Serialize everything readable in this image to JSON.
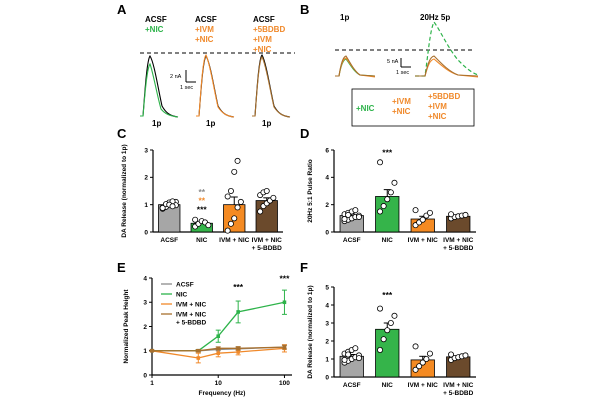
{
  "colors": {
    "acsf": "#000000",
    "nic": "#2db34a",
    "ivm": "#f0892a",
    "bdbd": "#a8702e",
    "acsf_bar": "#a6a6a6",
    "nic_bar": "#35b44a",
    "ivm_bar": "#f48a22",
    "bdbd_bar": "#6b4a2c",
    "gray": "#8c8c8c"
  },
  "panels": {
    "A": "A",
    "B": "B",
    "C": "C",
    "D": "D",
    "E": "E",
    "F": "F"
  },
  "panel_A": {
    "groups": [
      {
        "lines": [
          "ACSF",
          "+NIC"
        ],
        "colors": [
          "acsf",
          "nic"
        ],
        "trace": "nic"
      },
      {
        "lines": [
          "ACSF",
          "+IVM",
          "+NIC"
        ],
        "colors": [
          "acsf",
          "ivm",
          "ivm"
        ],
        "trace": "ivm"
      },
      {
        "lines": [
          "ACSF",
          "+5BDBD",
          "+IVM",
          "+NIC"
        ],
        "colors": [
          "acsf",
          "ivm",
          "ivm",
          "ivm"
        ],
        "trace": "bdbd"
      }
    ],
    "trace_labels": [
      "1p",
      "1p",
      "1p"
    ],
    "scale_y": "2 nA",
    "scale_x": "1 sec"
  },
  "panel_B": {
    "titles": [
      "1p",
      "20Hz 5p"
    ],
    "scale_y": "5 nA",
    "scale_x": "1 sec",
    "legend": [
      {
        "lines": [
          "+NIC"
        ],
        "color": "nic"
      },
      {
        "lines": [
          "+IVM",
          "+NIC"
        ],
        "color": "ivm"
      },
      {
        "lines": [
          "+5BDBD",
          "+IVM",
          "+NIC"
        ],
        "color": "ivm"
      }
    ]
  },
  "chart_data": [
    {
      "panel": "C",
      "type": "bar",
      "ylabel": "DA Release (normalized to 1p)",
      "ylim": [
        0,
        3
      ],
      "yticks": [
        0,
        1,
        2,
        3
      ],
      "categories": [
        "ACSF",
        "NIC",
        "IVM + NIC",
        "IVM + NIC\n+ 5-BDBD"
      ],
      "values": [
        1.0,
        0.32,
        1.0,
        1.15
      ],
      "errors": [
        0.04,
        0.06,
        0.28,
        0.1
      ],
      "points": [
        [
          0.9,
          0.95,
          1.0,
          1.05,
          1.1,
          0.85,
          0.92,
          1.08,
          1.12,
          0.98,
          0.88,
          1.02,
          1.0,
          0.94
        ],
        [
          0.2,
          0.3,
          0.4,
          0.35,
          0.25,
          0.45
        ],
        [
          0.05,
          0.3,
          0.5,
          0.9,
          1.1,
          1.3,
          1.5,
          2.2,
          2.6
        ],
        [
          0.75,
          0.95,
          1.05,
          1.15,
          1.25,
          1.35,
          1.45,
          1.5
        ]
      ],
      "bar_colors": [
        "acsf_bar",
        "nic_bar",
        "ivm_bar",
        "bdbd_bar"
      ],
      "annotations": [
        {
          "text": "**",
          "color": "gray",
          "category": 1,
          "y": 1.35
        },
        {
          "text": "**",
          "color": "ivm",
          "category": 1,
          "y": 1.05
        },
        {
          "text": "***",
          "color": "acsf",
          "category": 1,
          "y": 0.72
        }
      ]
    },
    {
      "panel": "D",
      "type": "bar",
      "ylabel": "20Hz 5:1 Pulse Ratio",
      "ylim": [
        0,
        6
      ],
      "yticks": [
        0,
        2,
        4,
        6
      ],
      "categories": [
        "ACSF",
        "NIC",
        "IVM + NIC",
        "IVM + NIC\n+ 5-BDBD"
      ],
      "values": [
        1.2,
        2.6,
        0.95,
        1.15
      ],
      "errors": [
        0.12,
        0.5,
        0.2,
        0.07
      ],
      "points": [
        [
          0.8,
          0.9,
          1.0,
          1.1,
          1.2,
          1.3,
          1.4,
          1.5,
          1.6,
          1.1,
          0.95,
          1.25
        ],
        [
          1.5,
          1.9,
          2.4,
          2.9,
          3.6,
          5.1
        ],
        [
          0.5,
          0.7,
          0.9,
          1.2,
          1.4,
          1.6
        ],
        [
          1.0,
          1.1,
          1.15,
          1.2,
          1.25,
          1.3
        ]
      ],
      "bar_colors": [
        "acsf_bar",
        "nic_bar",
        "ivm_bar",
        "bdbd_bar"
      ],
      "annotations": [
        {
          "text": "***",
          "color": "acsf",
          "category": 1,
          "y": 5.6
        }
      ]
    },
    {
      "panel": "E",
      "type": "line",
      "xlabel": "Frequency (Hz)",
      "ylabel": "Normalized Peak Height",
      "xscale": "log",
      "xlim": [
        1,
        130
      ],
      "xticks": [
        1,
        10,
        100
      ],
      "ylim": [
        0,
        4
      ],
      "yticks": [
        0,
        1,
        2,
        3,
        4
      ],
      "x": [
        1,
        5,
        10,
        20,
        100
      ],
      "series": [
        {
          "name": "ACSF",
          "color": "gray",
          "values": [
            1.0,
            1.0,
            1.05,
            1.08,
            1.15
          ],
          "errors": [
            0.03,
            0.05,
            0.05,
            0.06,
            0.08
          ]
        },
        {
          "name": "NIC",
          "color": "nic",
          "values": [
            1.0,
            1.0,
            1.6,
            2.6,
            3.0
          ],
          "errors": [
            0.03,
            0.05,
            0.25,
            0.45,
            0.5
          ]
        },
        {
          "name": "IVM + NIC",
          "color": "ivm",
          "values": [
            1.0,
            0.7,
            0.9,
            0.95,
            1.1
          ],
          "errors": [
            0.03,
            0.2,
            0.15,
            0.12,
            0.15
          ]
        },
        {
          "name": "IVM + NIC\n+ 5-BDBD",
          "color": "bdbd",
          "values": [
            1.0,
            1.0,
            1.1,
            1.1,
            1.15
          ],
          "errors": [
            0.03,
            0.05,
            0.06,
            0.07,
            0.08
          ]
        }
      ],
      "annotations": [
        {
          "text": "***",
          "x": 20,
          "y": 3.5
        },
        {
          "text": "***",
          "x": 100,
          "y": 3.85
        }
      ]
    },
    {
      "panel": "F",
      "type": "bar",
      "ylabel": "DA Release (normalized to 1p)",
      "ylim": [
        0,
        5
      ],
      "yticks": [
        0,
        1,
        2,
        3,
        4,
        5
      ],
      "categories": [
        "ACSF",
        "NIC",
        "IVM + NIC",
        "IVM + NIC\n+ 5-BDBD"
      ],
      "values": [
        1.15,
        2.65,
        0.95,
        1.12
      ],
      "errors": [
        0.1,
        0.35,
        0.2,
        0.06
      ],
      "points": [
        [
          0.8,
          0.9,
          1.0,
          1.1,
          1.2,
          1.3,
          1.4,
          1.5,
          1.6,
          1.05,
          0.95,
          1.25
        ],
        [
          1.5,
          2.1,
          2.6,
          3.0,
          3.4,
          3.8
        ],
        [
          0.4,
          0.6,
          0.8,
          1.0,
          1.3,
          1.7
        ],
        [
          0.95,
          1.05,
          1.1,
          1.15,
          1.2,
          1.25
        ]
      ],
      "bar_colors": [
        "acsf_bar",
        "nic_bar",
        "ivm_bar",
        "bdbd_bar"
      ],
      "annotations": [
        {
          "text": "***",
          "color": "acsf",
          "category": 1,
          "y": 4.4
        }
      ]
    }
  ]
}
